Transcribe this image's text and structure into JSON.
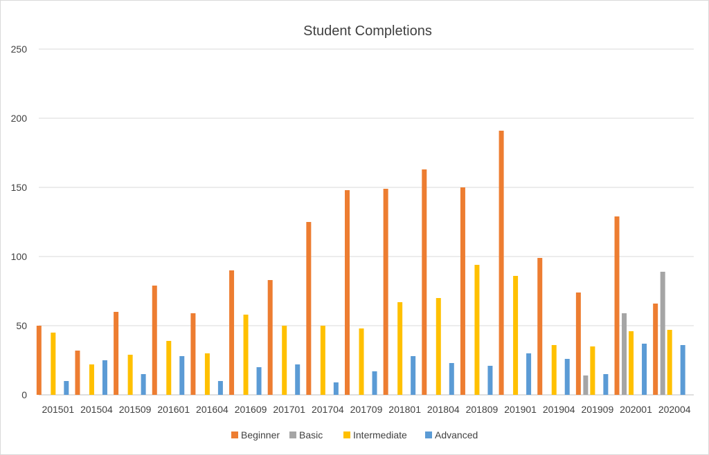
{
  "chart_data": {
    "type": "bar",
    "title": "Student Completions",
    "xlabel": "",
    "ylabel": "",
    "ylim": [
      0,
      250
    ],
    "yticks": [
      0,
      50,
      100,
      150,
      200,
      250
    ],
    "grid": true,
    "legend_position": "bottom",
    "categories": [
      "201501",
      "201504",
      "201509",
      "201601",
      "201604",
      "201609",
      "201701",
      "201704",
      "201709",
      "201801",
      "201804",
      "201809",
      "201901",
      "201904",
      "201909",
      "202001",
      "202004"
    ],
    "series": [
      {
        "name": "Beginner",
        "color": "#ED7D31",
        "values": [
          50,
          32,
          60,
          79,
          59,
          90,
          83,
          125,
          148,
          149,
          163,
          150,
          191,
          99,
          74,
          129,
          66
        ]
      },
      {
        "name": "Basic",
        "color": "#A5A5A5",
        "values": [
          0,
          0,
          0,
          0,
          0,
          0,
          0,
          0,
          0,
          0,
          0,
          0,
          0,
          0,
          14,
          59,
          89
        ]
      },
      {
        "name": "Intermediate",
        "color": "#FFC000",
        "values": [
          45,
          22,
          29,
          39,
          30,
          58,
          50,
          50,
          48,
          67,
          70,
          94,
          86,
          36,
          35,
          46,
          47
        ]
      },
      {
        "name": "Advanced",
        "color": "#5B9BD5",
        "values": [
          10,
          25,
          15,
          28,
          10,
          20,
          22,
          9,
          17,
          28,
          23,
          21,
          30,
          26,
          15,
          37,
          36
        ]
      }
    ]
  }
}
